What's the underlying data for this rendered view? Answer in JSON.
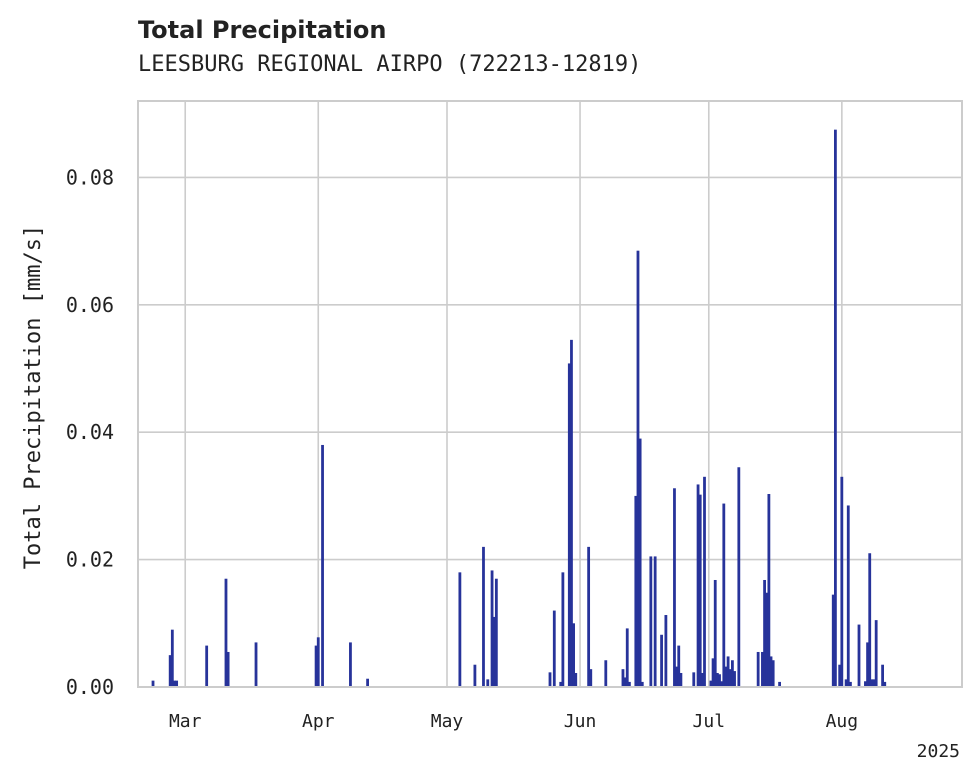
{
  "chart_data": {
    "type": "bar",
    "title": "Total Precipitation",
    "subtitle": "LEESBURG REGIONAL AIRPO (722213-12819)",
    "xlabel": "",
    "ylabel": "Total Precipitation [mm/s]",
    "year_label": "2025",
    "xlim": [
      "2025-02-18",
      "2025-08-29"
    ],
    "ylim": [
      0,
      0.092
    ],
    "x_ticks": [
      {
        "date": "2025-03-01",
        "label": "Mar"
      },
      {
        "date": "2025-04-01",
        "label": "Apr"
      },
      {
        "date": "2025-05-01",
        "label": "May"
      },
      {
        "date": "2025-06-01",
        "label": "Jun"
      },
      {
        "date": "2025-07-01",
        "label": "Jul"
      },
      {
        "date": "2025-08-01",
        "label": "Aug"
      }
    ],
    "y_ticks": [
      {
        "value": 0,
        "label": "0.00"
      },
      {
        "value": 0.02,
        "label": "0.02"
      },
      {
        "value": 0.04,
        "label": "0.04"
      },
      {
        "value": 0.06,
        "label": "0.06"
      },
      {
        "value": 0.08,
        "label": "0.08"
      }
    ],
    "grid": true,
    "bar_color": "#27339a",
    "grid_color": "#cccccc",
    "x": [
      "2025-02-21T12:00",
      "2025-02-25T12:00",
      "2025-02-26T00:00",
      "2025-02-26T12:00",
      "2025-02-27T00:00",
      "2025-03-06T00:00",
      "2025-03-10T12:00",
      "2025-03-11T00:00",
      "2025-03-17T12:00",
      "2025-03-31T12:00",
      "2025-04-01T00:00",
      "2025-04-02T00:00",
      "2025-04-08T12:00",
      "2025-04-12T12:00",
      "2025-05-04T00:00",
      "2025-05-07T12:00",
      "2025-05-09T12:00",
      "2025-05-10T12:00",
      "2025-05-11T12:00",
      "2025-05-12T00:00",
      "2025-05-12T12:00",
      "2025-05-25T00:00",
      "2025-05-26T00:00",
      "2025-05-27T12:00",
      "2025-05-28T00:00",
      "2025-05-29T12:00",
      "2025-05-30T00:00",
      "2025-05-30T12:00",
      "2025-05-31T00:00",
      "2025-06-03T00:00",
      "2025-06-03T12:00",
      "2025-06-07T00:00",
      "2025-06-11T00:00",
      "2025-06-11T12:00",
      "2025-06-12T00:00",
      "2025-06-12T12:00",
      "2025-06-14T00:00",
      "2025-06-14T12:00",
      "2025-06-15T00:00",
      "2025-06-15T12:00",
      "2025-06-17T12:00",
      "2025-06-18T12:00",
      "2025-06-20T00:00",
      "2025-06-21T00:00",
      "2025-06-23T00:00",
      "2025-06-23T12:00",
      "2025-06-24T00:00",
      "2025-06-24T12:00",
      "2025-06-27T12:00",
      "2025-06-28T12:00",
      "2025-06-29T00:00",
      "2025-06-29T12:00",
      "2025-06-30T00:00",
      "2025-07-01T12:00",
      "2025-07-02T00:00",
      "2025-07-02T12:00",
      "2025-07-03T00:00",
      "2025-07-03T12:00",
      "2025-07-04T00:00",
      "2025-07-04T12:00",
      "2025-07-05T00:00",
      "2025-07-05T12:00",
      "2025-07-06T00:00",
      "2025-07-06T12:00",
      "2025-07-07T00:00",
      "2025-07-08T00:00",
      "2025-07-12T12:00",
      "2025-07-13T12:00",
      "2025-07-14T00:00",
      "2025-07-14T12:00",
      "2025-07-15T00:00",
      "2025-07-15T12:00",
      "2025-07-16T00:00",
      "2025-07-17T12:00",
      "2025-07-30T00:00",
      "2025-07-30T12:00",
      "2025-07-31T12:00",
      "2025-08-01T00:00",
      "2025-08-02T00:00",
      "2025-08-02T12:00",
      "2025-08-03T00:00",
      "2025-08-05T00:00",
      "2025-08-06T12:00",
      "2025-08-07T00:00",
      "2025-08-07T12:00",
      "2025-08-08T00:00",
      "2025-08-08T12:00",
      "2025-08-09T00:00",
      "2025-08-10T12:00",
      "2025-08-11T00:00"
    ],
    "values": [
      0.001,
      0.005,
      0.009,
      0.001,
      0.001,
      0.0065,
      0.017,
      0.0055,
      0.007,
      0.0065,
      0.0078,
      0.038,
      0.007,
      0.0013,
      0.018,
      0.0035,
      0.022,
      0.0012,
      0.0183,
      0.011,
      0.017,
      0.0023,
      0.012,
      0.0008,
      0.018,
      0.0508,
      0.0545,
      0.01,
      0.0022,
      0.022,
      0.0028,
      0.0042,
      0.0028,
      0.0015,
      0.0092,
      0.0008,
      0.03,
      0.0685,
      0.039,
      0.0008,
      0.0205,
      0.0205,
      0.0082,
      0.0113,
      0.0312,
      0.0032,
      0.0065,
      0.0022,
      0.0023,
      0.0318,
      0.0302,
      0.0022,
      0.033,
      0.001,
      0.0045,
      0.0168,
      0.0022,
      0.002,
      0.0009,
      0.0288,
      0.0032,
      0.0048,
      0.0028,
      0.0042,
      0.0025,
      0.0345,
      0.0055,
      0.0055,
      0.0168,
      0.0148,
      0.0303,
      0.0048,
      0.0042,
      0.0008,
      0.0145,
      0.0875,
      0.0035,
      0.033,
      0.0012,
      0.0285,
      0.0008,
      0.0098,
      0.0009,
      0.007,
      0.021,
      0.0012,
      0.0012,
      0.0105,
      0.0035,
      0.0008
    ]
  }
}
